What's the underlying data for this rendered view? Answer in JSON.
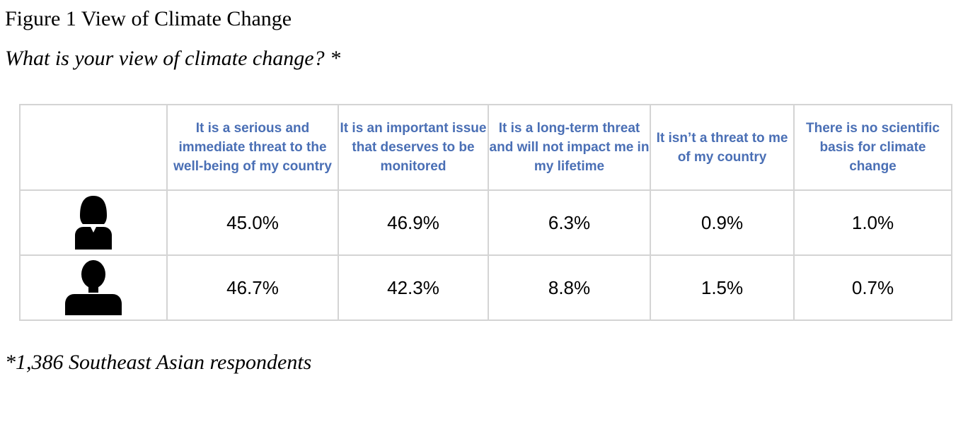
{
  "figure": {
    "title": "Figure 1 View of Climate Change",
    "question": "What is your view of climate change? *",
    "footnote": "*1,386 Southeast Asian respondents"
  },
  "chart_data": {
    "type": "table",
    "title": "Figure 1 View of Climate Change",
    "subtitle": "What is your view of climate change? *",
    "categories": [
      "It is a serious and immediate threat to the well-being of my country",
      "It is an important issue that deserves to be monitored",
      "It is a long-term threat and will not impact me in my lifetime",
      "It isn’t a threat to me of my country",
      "There is no scientific basis for climate change"
    ],
    "series": [
      {
        "icon": "female-person-icon",
        "values": [
          "45.0%",
          "46.9%",
          "6.3%",
          "0.9%",
          "1.0%"
        ]
      },
      {
        "icon": "male-person-icon",
        "values": [
          "46.7%",
          "42.3%",
          "8.8%",
          "1.5%",
          "0.7%"
        ]
      }
    ],
    "header_color": "#4a6fb5",
    "grid_color": "#d4d4d4"
  }
}
